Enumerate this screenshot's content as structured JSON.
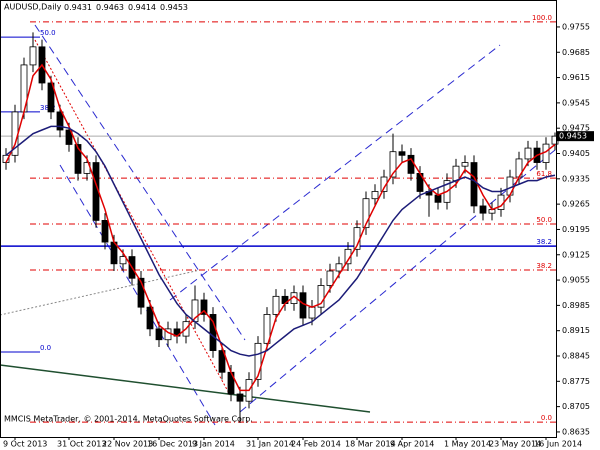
{
  "chart_data": {
    "type": "candlestick",
    "title": "AUDUSD,Daily",
    "header_values": [
      0.9431,
      0.9463,
      0.9414,
      0.9453
    ],
    "footer": "MMCIS MetaTrader, © 2001-2014, MetaQuotes Software Corp.",
    "categories": [
      null,
      "9 Oct 2013",
      null,
      null,
      null,
      null,
      null,
      "31 Oct 2013",
      null,
      null,
      null,
      null,
      "22 Nov 2013",
      null,
      null,
      null,
      null,
      "16 Dec 2013",
      null,
      null,
      null,
      null,
      "9 Jan 2014",
      null,
      null,
      null,
      null,
      null,
      "31 Jan 2014",
      null,
      null,
      null,
      null,
      "24 Feb 2014",
      null,
      null,
      null,
      null,
      null,
      "18 Mar 2014",
      null,
      null,
      null,
      null,
      "9 Apr 2014",
      null,
      null,
      null,
      null,
      null,
      "1 May 2014",
      null,
      null,
      null,
      null,
      "23 May 2014",
      null,
      null,
      null,
      null,
      "16 Jun 2014",
      null
    ],
    "open": [
      0.938,
      0.94,
      0.952,
      0.965,
      0.97,
      0.96,
      0.952,
      0.947,
      0.943,
      0.935,
      0.938,
      0.922,
      0.916,
      0.91,
      0.912,
      0.906,
      0.898,
      0.892,
      0.889,
      0.892,
      0.89,
      0.894,
      0.9,
      0.896,
      0.886,
      0.88,
      0.874,
      0.872,
      0.878,
      0.888,
      0.896,
      0.901,
      0.899,
      0.902,
      0.895,
      0.898,
      0.904,
      0.908,
      0.91,
      0.914,
      0.92,
      0.928,
      0.93,
      0.934,
      0.941,
      0.94,
      0.935,
      0.93,
      0.929,
      0.927,
      0.933,
      0.937,
      0.938,
      0.926,
      0.924,
      0.925,
      0.929,
      0.934,
      0.939,
      0.942,
      0.938,
      0.9431
    ],
    "high": [
      0.942,
      0.954,
      0.967,
      0.974,
      0.972,
      0.962,
      0.954,
      0.949,
      0.945,
      0.94,
      0.94,
      0.924,
      0.918,
      0.914,
      0.914,
      0.908,
      0.9,
      0.894,
      0.894,
      0.894,
      0.896,
      0.904,
      0.902,
      0.898,
      0.888,
      0.882,
      0.876,
      0.88,
      0.89,
      0.898,
      0.903,
      0.903,
      0.904,
      0.904,
      0.9,
      0.906,
      0.91,
      0.912,
      0.916,
      0.922,
      0.93,
      0.932,
      0.936,
      0.946,
      0.943,
      0.942,
      0.937,
      0.932,
      0.931,
      0.935,
      0.939,
      0.94,
      0.94,
      0.928,
      0.927,
      0.931,
      0.936,
      0.941,
      0.944,
      0.944,
      0.945,
      0.9463
    ],
    "low": [
      0.936,
      0.938,
      0.95,
      0.963,
      0.958,
      0.95,
      0.945,
      0.941,
      0.933,
      0.933,
      0.92,
      0.914,
      0.908,
      0.908,
      0.904,
      0.896,
      0.89,
      0.887,
      0.887,
      0.888,
      0.888,
      0.892,
      0.894,
      0.884,
      0.878,
      0.872,
      0.866,
      0.87,
      0.876,
      0.886,
      0.894,
      0.897,
      0.897,
      0.893,
      0.893,
      0.896,
      0.902,
      0.906,
      0.908,
      0.912,
      0.918,
      0.926,
      0.928,
      0.932,
      0.938,
      0.933,
      0.928,
      0.923,
      0.925,
      0.925,
      0.931,
      0.935,
      0.924,
      0.922,
      0.922,
      0.923,
      0.927,
      0.932,
      0.937,
      0.936,
      0.936,
      0.9414
    ],
    "close": [
      0.94,
      0.952,
      0.965,
      0.97,
      0.96,
      0.952,
      0.947,
      0.943,
      0.935,
      0.938,
      0.922,
      0.916,
      0.91,
      0.912,
      0.906,
      0.898,
      0.892,
      0.889,
      0.892,
      0.89,
      0.894,
      0.9,
      0.896,
      0.886,
      0.88,
      0.874,
      0.872,
      0.878,
      0.888,
      0.896,
      0.901,
      0.899,
      0.902,
      0.895,
      0.898,
      0.904,
      0.908,
      0.91,
      0.914,
      0.92,
      0.928,
      0.93,
      0.934,
      0.941,
      0.94,
      0.935,
      0.93,
      0.929,
      0.927,
      0.933,
      0.937,
      0.938,
      0.926,
      0.924,
      0.925,
      0.929,
      0.934,
      0.939,
      0.942,
      0.938,
      0.9431,
      0.9453
    ],
    "moving_averages": [
      {
        "color": "#e00000",
        "values": [
          0.938,
          0.943,
          0.952,
          0.962,
          0.965,
          0.961,
          0.953,
          0.948,
          0.942,
          0.939,
          0.932,
          0.925,
          0.916,
          0.913,
          0.909,
          0.905,
          0.899,
          0.893,
          0.891,
          0.89,
          0.892,
          0.895,
          0.897,
          0.894,
          0.887,
          0.88,
          0.875,
          0.875,
          0.879,
          0.887,
          0.895,
          0.899,
          0.901,
          0.899,
          0.898,
          0.899,
          0.903,
          0.907,
          0.911,
          0.915,
          0.921,
          0.926,
          0.931,
          0.935,
          0.938,
          0.939,
          0.935,
          0.931,
          0.929,
          0.93,
          0.932,
          0.936,
          0.934,
          0.929,
          0.925,
          0.926,
          0.929,
          0.934,
          0.938,
          0.94,
          0.941,
          0.943
        ]
      },
      {
        "color": "#1c1c78",
        "values": [
          0.94,
          0.942,
          0.944,
          0.946,
          0.947,
          0.948,
          0.948,
          0.9475,
          0.946,
          0.944,
          0.941,
          0.937,
          0.932,
          0.927,
          0.922,
          0.917,
          0.912,
          0.907,
          0.903,
          0.899,
          0.896,
          0.894,
          0.892,
          0.89,
          0.888,
          0.886,
          0.885,
          0.8845,
          0.885,
          0.886,
          0.888,
          0.89,
          0.892,
          0.893,
          0.894,
          0.896,
          0.898,
          0.9,
          0.903,
          0.906,
          0.91,
          0.914,
          0.918,
          0.922,
          0.925,
          0.927,
          0.929,
          0.93,
          0.931,
          0.932,
          0.933,
          0.934,
          0.933,
          0.931,
          0.93,
          0.93,
          0.931,
          0.932,
          0.933,
          0.933,
          0.934,
          0.9345
        ]
      }
    ],
    "current_price": 0.9453,
    "fib_levels": [
      {
        "label": "100.0",
        "value": 0.9769,
        "color": "#e00000"
      },
      {
        "label": "61.8",
        "value": 0.9337,
        "color": "#e00000"
      },
      {
        "label": "50.0",
        "value": 0.921,
        "color": "#e00000"
      },
      {
        "label": "38.2",
        "value": 0.9149,
        "color": "#0000cc",
        "solid": true
      },
      {
        "label": "38.2",
        "value": 0.9083,
        "color": "#e00000"
      },
      {
        "label": "0.0",
        "value": 0.8662,
        "color": "#e00000"
      }
    ],
    "fib_levels_left": [
      {
        "label": "50.0",
        "value": 0.9727,
        "color": "#0000cc"
      },
      {
        "label": "38.2",
        "value": 0.952,
        "color": "#0000cc"
      },
      {
        "label": "0.0",
        "value": 0.8856,
        "color": "#0000cc"
      }
    ],
    "ylim": [
      0.8621,
      0.9824
    ],
    "yticks": [
      0.9755,
      0.9685,
      0.9615,
      0.9545,
      0.9475,
      0.9405,
      0.9335,
      0.9265,
      0.9195,
      0.9125,
      0.9055,
      0.8985,
      0.8915,
      0.8845,
      0.8775,
      0.8705,
      0.8635
    ]
  }
}
